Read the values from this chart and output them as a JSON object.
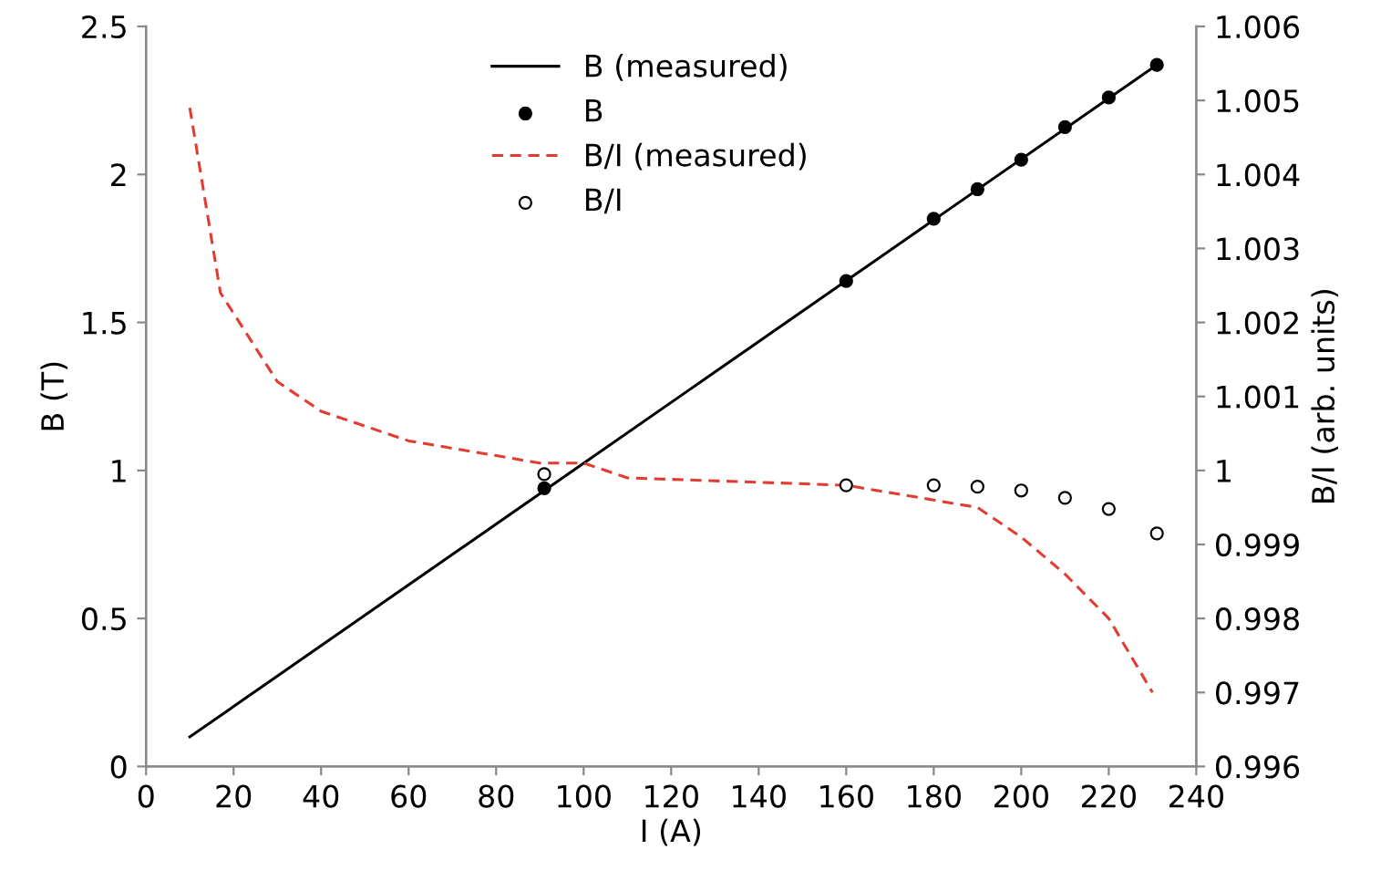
{
  "chart_data": {
    "type": "line",
    "xlabel": "I (A)",
    "ylabel": "B (T)",
    "y2label": "B/I (arb. units)",
    "xlim": [
      0,
      240
    ],
    "xticks": [
      0,
      20,
      40,
      60,
      80,
      100,
      120,
      140,
      160,
      180,
      200,
      220,
      240
    ],
    "ylim": [
      0,
      2.5
    ],
    "yticks": [
      0,
      0.5,
      1,
      1.5,
      2,
      2.5
    ],
    "y2lim": [
      0.996,
      1.006
    ],
    "y2ticks": [
      {
        "value": 0.996,
        "label": "0.996"
      },
      {
        "value": 0.997,
        "label": "0.997"
      },
      {
        "value": 0.998,
        "label": "0.998"
      },
      {
        "value": 0.999,
        "label": "0.999"
      },
      {
        "value": 1,
        "label": "1"
      },
      {
        "value": 1.001,
        "label": "1.001"
      },
      {
        "value": 1.002,
        "label": "1.002"
      },
      {
        "value": 1.003,
        "label": "1.003"
      },
      {
        "value": 1.004,
        "label": "1.004"
      },
      {
        "value": 1.005,
        "label": "1.005"
      },
      {
        "value": 1.006,
        "label": "1.006"
      }
    ],
    "grid": false,
    "legend": "top",
    "series": [
      {
        "name": "B (measured)",
        "color": "#000000",
        "marker": "none",
        "line_style": "solid",
        "x": [
          10,
          231
        ],
        "values": [
          0.1,
          2.37
        ]
      },
      {
        "name": "B",
        "type": "scatter",
        "color": "#000000",
        "marker": "circle",
        "x": [
          91,
          160,
          180,
          190,
          200,
          210,
          220,
          231
        ],
        "values": [
          0.94,
          1.64,
          1.85,
          1.95,
          2.05,
          2.16,
          2.26,
          2.37
        ]
      },
      {
        "name": "B/I (measured)",
        "axis": "y2",
        "color": "#e03c31",
        "marker": "none",
        "line_style": "dashed",
        "x": [
          10,
          17,
          30,
          40,
          60,
          80,
          90,
          100,
          110,
          160,
          180,
          190,
          200,
          210,
          220,
          230
        ],
        "values": [
          1.0049,
          1.0024,
          1.0012,
          1.0008,
          1.0004,
          1.0002,
          1.0001,
          1.0001,
          0.9999,
          0.9998,
          0.9996,
          0.9995,
          0.9991,
          0.9986,
          0.998,
          0.997
        ]
      },
      {
        "name": "B/I",
        "type": "scatter",
        "axis": "y2",
        "color": "#000000",
        "marker": "circle",
        "x": [
          91,
          160,
          180,
          190,
          200,
          210,
          220,
          231
        ],
        "values": [
          0.99995,
          0.9998,
          0.9998,
          0.99978,
          0.99973,
          0.99963,
          0.99948,
          0.99915
        ]
      }
    ]
  }
}
